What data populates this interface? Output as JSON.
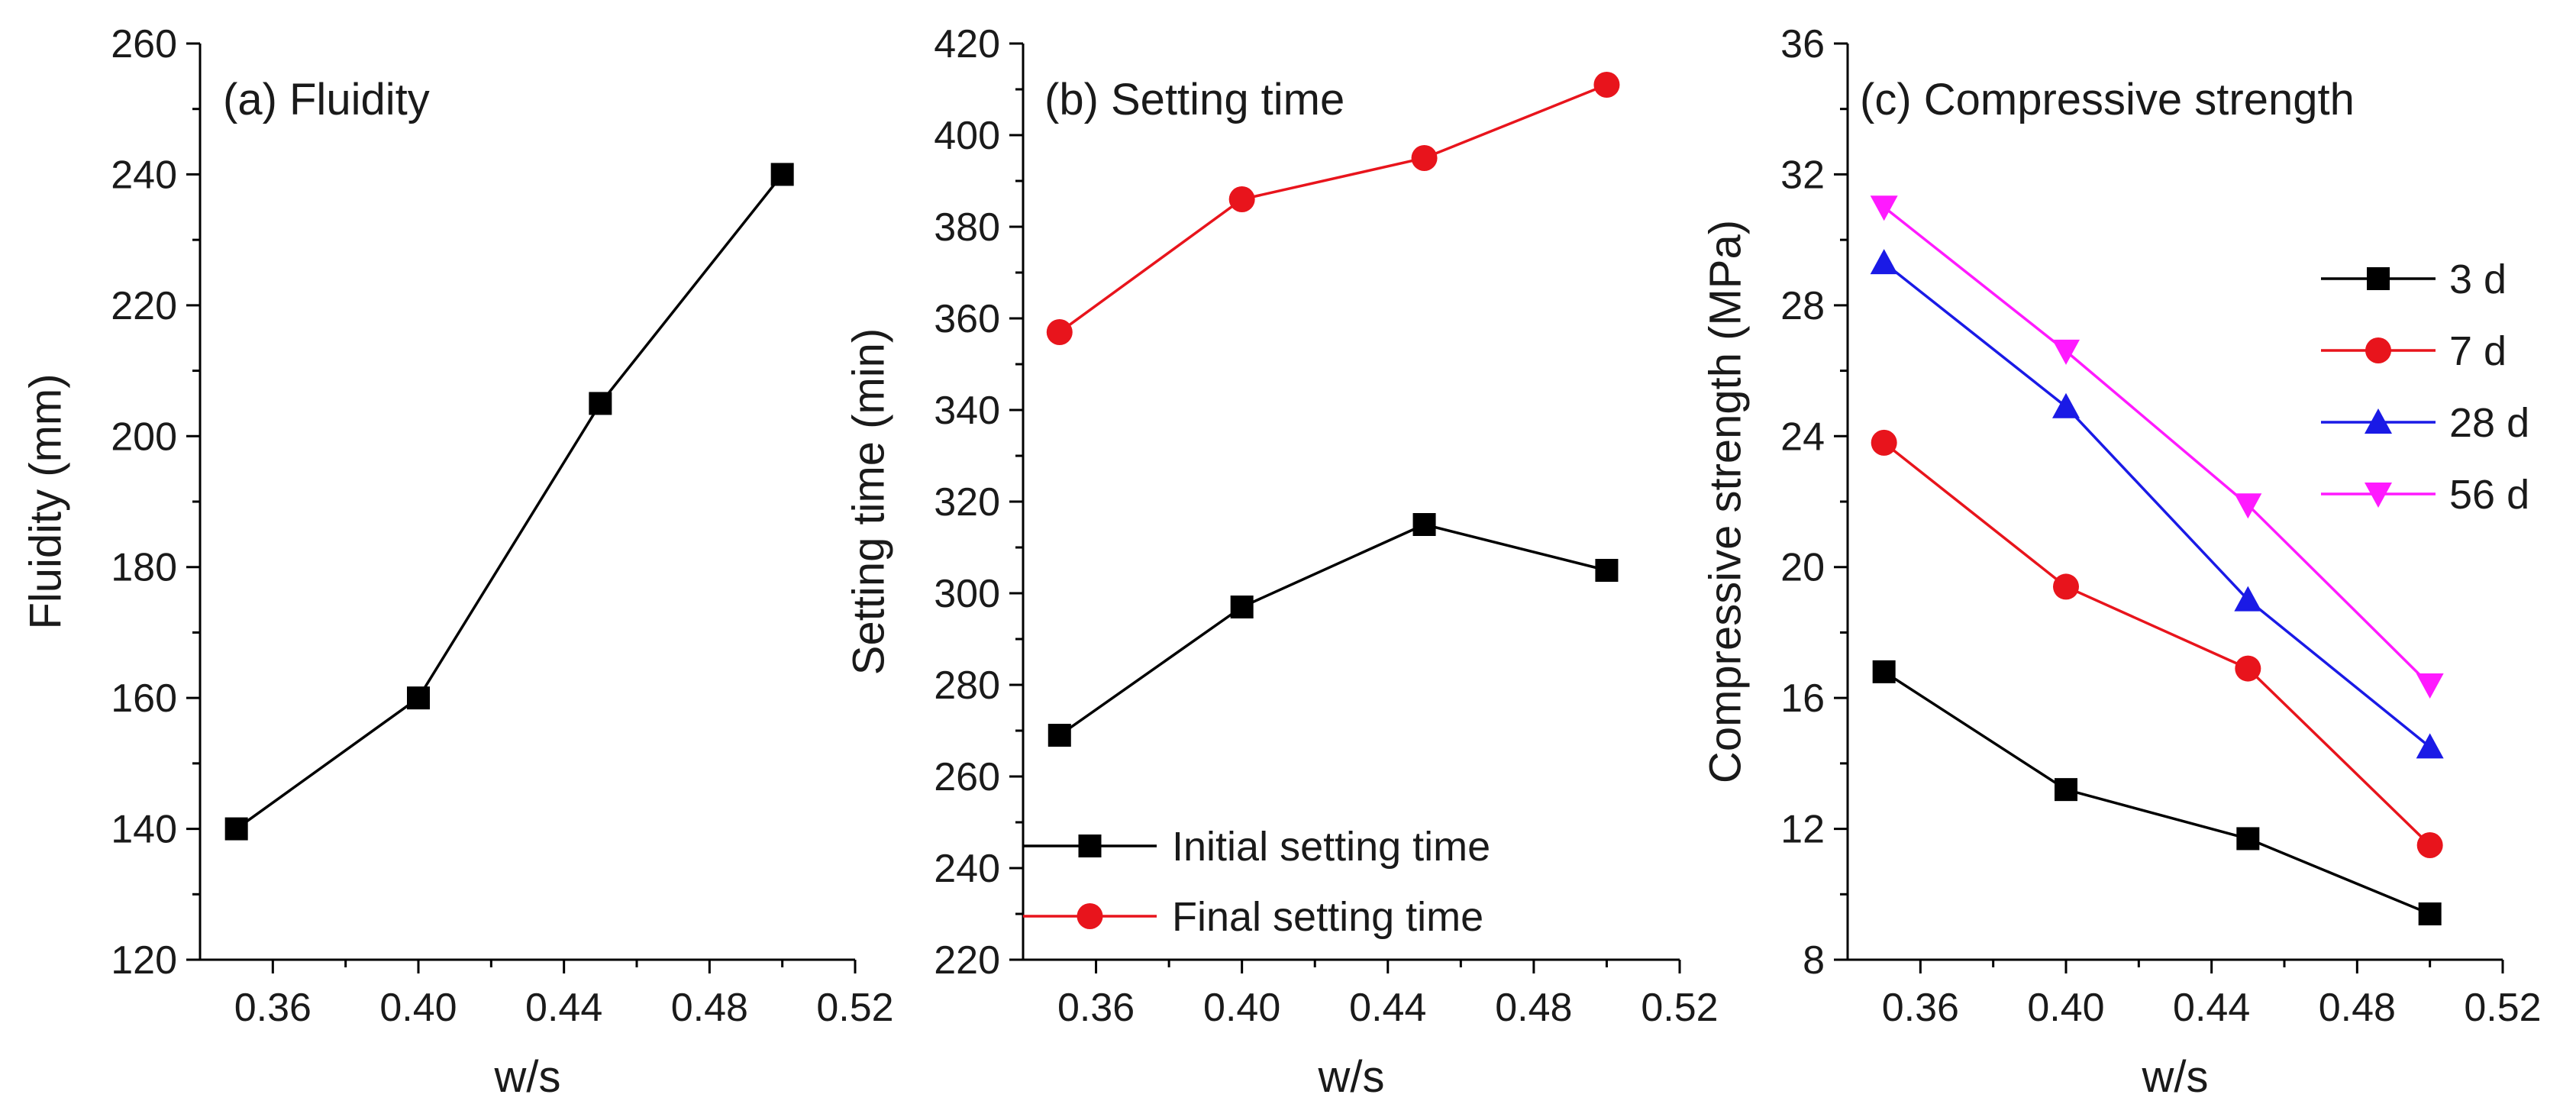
{
  "chart_data": [
    {
      "type": "line",
      "title": "(a) Fluidity",
      "xlabel": "w/s",
      "ylabel": "Fluidity (mm)",
      "xlim": [
        0.34,
        0.52
      ],
      "ylim": [
        120,
        260
      ],
      "xticks": [
        "0.36",
        "0.40",
        "0.44",
        "0.48",
        "0.52"
      ],
      "yticks": [
        "120",
        "140",
        "160",
        "180",
        "200",
        "220",
        "240",
        "260"
      ],
      "x": [
        0.35,
        0.4,
        0.45,
        0.5
      ],
      "series": [
        {
          "values": [
            140,
            160,
            205,
            240
          ],
          "color": "#000000",
          "marker": "square"
        }
      ]
    },
    {
      "type": "line",
      "title": "(b) Setting time",
      "xlabel": "w/s",
      "ylabel": "Setting time (min)",
      "xlim": [
        0.34,
        0.52
      ],
      "ylim": [
        220,
        420
      ],
      "xticks": [
        "0.36",
        "0.40",
        "0.44",
        "0.48",
        "0.52"
      ],
      "yticks": [
        "220",
        "240",
        "260",
        "280",
        "300",
        "320",
        "340",
        "360",
        "380",
        "400",
        "420"
      ],
      "x": [
        0.35,
        0.4,
        0.45,
        0.5
      ],
      "legend_position": "bottom-left",
      "series": [
        {
          "name": "Initial setting time",
          "values": [
            269,
            297,
            315,
            305
          ],
          "color": "#000000",
          "marker": "square"
        },
        {
          "name": "Final setting time",
          "values": [
            357,
            386,
            395,
            411
          ],
          "color": "#e8141c",
          "marker": "circle"
        }
      ]
    },
    {
      "type": "line",
      "title": "(c) Compressive strength",
      "xlabel": "w/s",
      "ylabel": "Compressive strength (MPa)",
      "xlim": [
        0.34,
        0.52
      ],
      "ylim": [
        8,
        36
      ],
      "xticks": [
        "0.36",
        "0.40",
        "0.44",
        "0.48",
        "0.52"
      ],
      "yticks": [
        "8",
        "12",
        "16",
        "20",
        "24",
        "28",
        "32",
        "36"
      ],
      "x": [
        0.35,
        0.4,
        0.45,
        0.5
      ],
      "legend_position": "top-right",
      "series": [
        {
          "name": "3 d",
          "values": [
            16.8,
            13.2,
            11.7,
            9.4
          ],
          "color": "#000000",
          "marker": "square"
        },
        {
          "name": "7 d",
          "values": [
            23.8,
            19.4,
            16.9,
            11.5
          ],
          "color": "#e8141c",
          "marker": "circle"
        },
        {
          "name": "28 d",
          "values": [
            29.3,
            24.9,
            19.0,
            14.5
          ],
          "color": "#1a1ae6",
          "marker": "triangle-up"
        },
        {
          "name": "56 d",
          "values": [
            31.0,
            26.6,
            21.9,
            16.4
          ],
          "color": "#ff1aff",
          "marker": "triangle-down"
        }
      ]
    }
  ]
}
